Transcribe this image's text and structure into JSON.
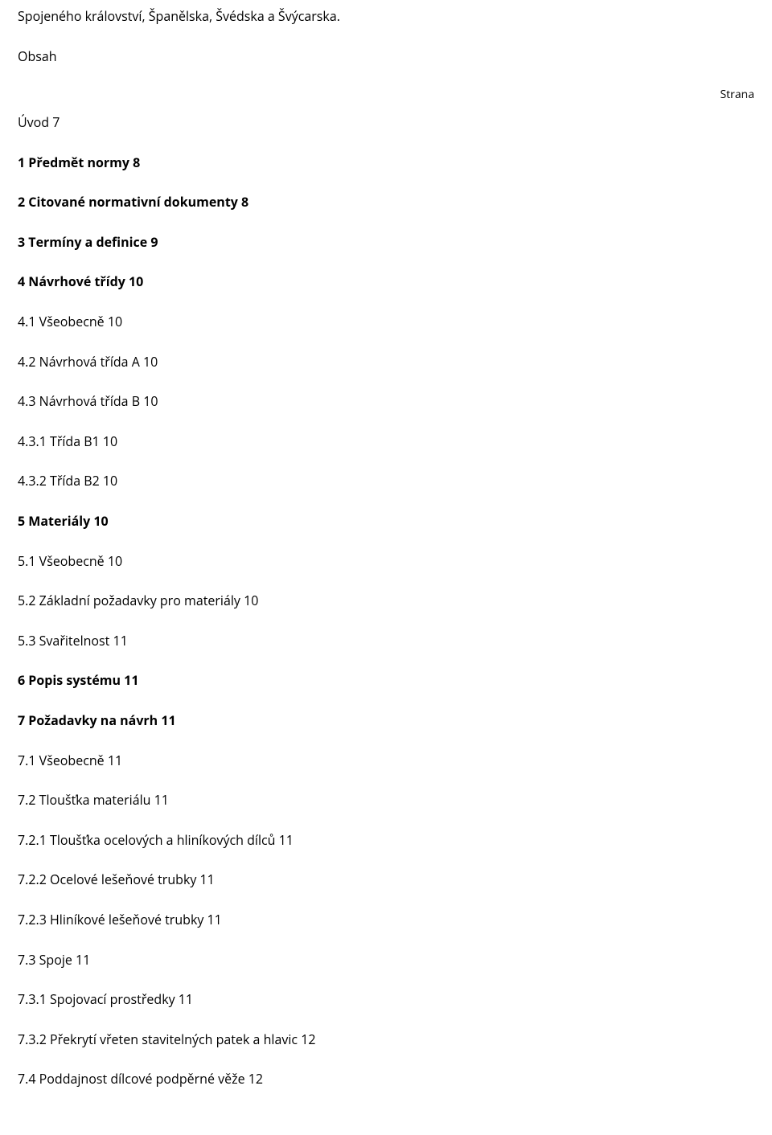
{
  "lead_text": "Spojeného království, Španělska, Švédska a Švýcarska.",
  "section": "Obsah",
  "strana_label": "Strana",
  "toc": [
    {
      "text": "Úvod 7",
      "bold": false
    },
    {
      "text": "1 Předmět normy 8",
      "bold": true
    },
    {
      "text": "2 Citované normativní dokumenty 8",
      "bold": true
    },
    {
      "text": "3 Termíny a definice 9",
      "bold": true
    },
    {
      "text": "4 Návrhové třídy 10",
      "bold": true
    },
    {
      "text": "4.1 Všeobecně 10",
      "bold": false
    },
    {
      "text": "4.2 Návrhová třída A 10",
      "bold": false
    },
    {
      "text": "4.3 Návrhová třída B 10",
      "bold": false
    },
    {
      "text": "4.3.1 Třída B1 10",
      "bold": false
    },
    {
      "text": "4.3.2 Třída B2 10",
      "bold": false
    },
    {
      "text": "5 Materiály 10",
      "bold": true
    },
    {
      "text": "5.1 Všeobecně 10",
      "bold": false
    },
    {
      "text": "5.2 Základní požadavky pro materiály 10",
      "bold": false
    },
    {
      "text": "5.3 Svařitelnost 11",
      "bold": false
    },
    {
      "text": "6 Popis systému 11",
      "bold": true
    },
    {
      "text": "7 Požadavky na návrh 11",
      "bold": true
    },
    {
      "text": "7.1 Všeobecně 11",
      "bold": false
    },
    {
      "text": "7.2 Tloušťka materiálu 11",
      "bold": false
    },
    {
      "text": "7.2.1 Tloušťka ocelových a hliníkových dílců 11",
      "bold": false
    },
    {
      "text": "7.2.2 Ocelové lešeňové trubky 11",
      "bold": false
    },
    {
      "text": "7.2.3 Hliníkové lešeňové trubky 11",
      "bold": false
    },
    {
      "text": "7.3 Spoje 11",
      "bold": false
    },
    {
      "text": "7.3.1 Spojovací prostředky 11",
      "bold": false
    },
    {
      "text": "7.3.2 Překrytí vřeten stavitelných patek a hlavic 12",
      "bold": false
    },
    {
      "text": "7.4 Poddajnost dílcové podpěrné věže 12",
      "bold": false
    }
  ]
}
